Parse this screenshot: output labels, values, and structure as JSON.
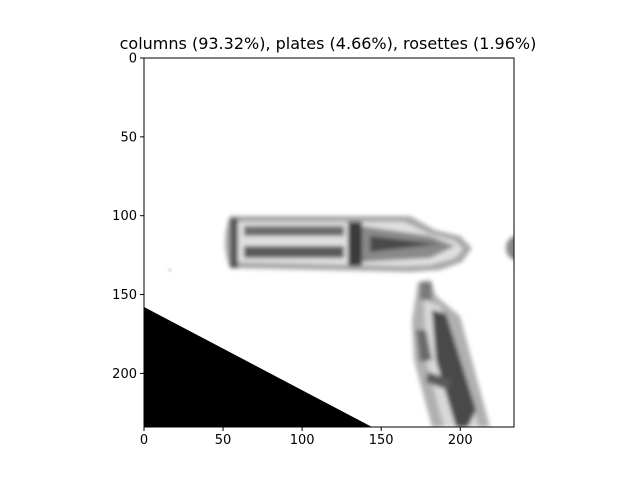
{
  "title": "columns (93.32%), plates (4.66%), rosettes (1.96%)",
  "x_axis": {
    "range": [
      0,
      234
    ],
    "ticks": [
      {
        "value": 0,
        "label": "0"
      },
      {
        "value": 50,
        "label": "50"
      },
      {
        "value": 100,
        "label": "100"
      },
      {
        "value": 150,
        "label": "150"
      },
      {
        "value": 200,
        "label": "200"
      }
    ]
  },
  "y_axis": {
    "range": [
      0,
      234
    ],
    "inverted": true,
    "ticks": [
      {
        "value": 0,
        "label": "0"
      },
      {
        "value": 50,
        "label": "50"
      },
      {
        "value": 100,
        "label": "100"
      },
      {
        "value": 150,
        "label": "150"
      },
      {
        "value": 200,
        "label": "200"
      }
    ]
  },
  "image": {
    "subject": "grayscale microscope image of ice crystals (columns) on white background with black corner region",
    "colors": {
      "background": "#ffffff",
      "crystal_dark": "#3a3a3a",
      "crystal_mid": "#7a7a7a",
      "crystal_light": "#c8c8c8",
      "corner_fill": "#000000"
    }
  }
}
